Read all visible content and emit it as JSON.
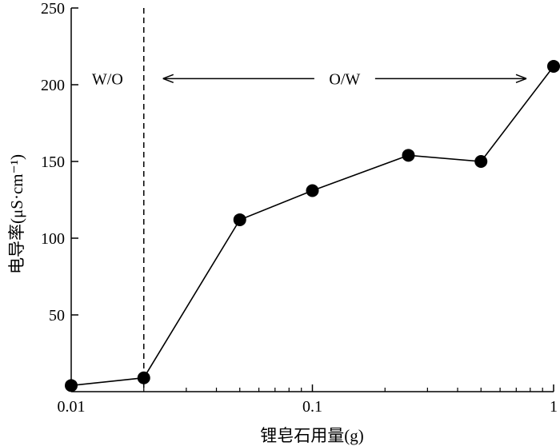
{
  "chart_data": {
    "type": "line",
    "title": "",
    "xlabel": "锂皂石用量(g)",
    "ylabel": "电导率(μS·cm⁻¹)",
    "xscale": "log",
    "xlim": [
      0.01,
      1
    ],
    "ylim": [
      0,
      250
    ],
    "xticks": [
      0.01,
      0.1,
      1
    ],
    "xtick_labels": [
      "0.01",
      "0.1",
      "1"
    ],
    "yticks": [
      50,
      100,
      150,
      200,
      250
    ],
    "ytick_labels": [
      "50",
      "100",
      "150",
      "200",
      "250"
    ],
    "grid": false,
    "series": [
      {
        "x": [
          0.01,
          0.02,
          0.05,
          0.1,
          0.25,
          0.5,
          1
        ],
        "y": [
          4,
          9,
          112,
          131,
          154,
          150,
          212
        ],
        "color": "#000000",
        "marker": "filled-circle"
      }
    ],
    "annotations": {
      "phase_boundary_x": 0.02,
      "left_region_label": "W/O",
      "right_region_label": "O/W"
    }
  }
}
